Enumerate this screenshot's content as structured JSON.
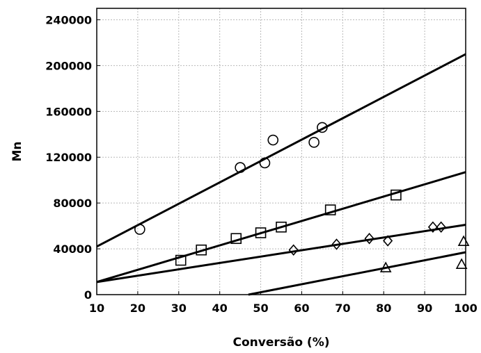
{
  "chart_data": {
    "type": "scatter",
    "title": "",
    "xlabel": "Conversão (%)",
    "ylabel": "Mn",
    "xlim": [
      10,
      100
    ],
    "ylim": [
      0,
      250000
    ],
    "x_ticks": [
      10,
      20,
      30,
      40,
      50,
      60,
      70,
      80,
      90,
      100
    ],
    "y_ticks": [
      0,
      40000,
      80000,
      120000,
      160000,
      200000,
      240000
    ],
    "grid": true,
    "series": [
      {
        "marker": "circle",
        "points": [
          [
            20.5,
            57000
          ],
          [
            45,
            111000
          ],
          [
            51,
            115000
          ],
          [
            53,
            135000
          ],
          [
            63,
            133000
          ],
          [
            65,
            146000
          ]
        ],
        "fit": [
          [
            10,
            42000
          ],
          [
            100,
            210000
          ]
        ]
      },
      {
        "marker": "square",
        "points": [
          [
            30.5,
            30000
          ],
          [
            35.5,
            39000
          ],
          [
            44,
            49000
          ],
          [
            50,
            54000
          ],
          [
            55,
            59000
          ],
          [
            67,
            74000
          ],
          [
            83,
            87000
          ]
        ],
        "fit": [
          [
            10,
            11000
          ],
          [
            100,
            107000
          ]
        ]
      },
      {
        "marker": "diamond",
        "points": [
          [
            58,
            39000
          ],
          [
            68.5,
            44000
          ],
          [
            76.5,
            49000
          ],
          [
            81,
            47000
          ],
          [
            92,
            59000
          ],
          [
            94,
            59000
          ]
        ],
        "fit": [
          [
            10,
            11000
          ],
          [
            100,
            61000
          ]
        ]
      },
      {
        "marker": "triangle",
        "points": [
          [
            80.5,
            23000
          ],
          [
            99,
            26000
          ],
          [
            99.5,
            46000
          ]
        ],
        "fit": [
          [
            47,
            0
          ],
          [
            100,
            37000
          ]
        ]
      }
    ]
  }
}
